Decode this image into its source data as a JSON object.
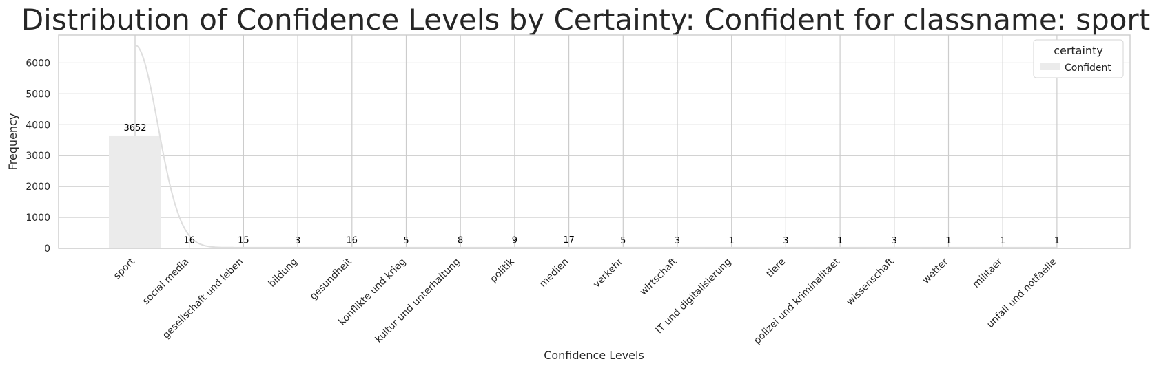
{
  "chart_data": {
    "type": "bar",
    "title": "Distribution of Confidence Levels by Certainty: Confident for classname: sport",
    "xlabel": "Confidence Levels",
    "ylabel": "Frequency",
    "ylim": [
      0,
      6900
    ],
    "yticks": [
      0,
      1000,
      2000,
      3000,
      4000,
      5000,
      6000
    ],
    "grid": true,
    "legend": {
      "title": "certainty",
      "placement": "top-right",
      "entries": [
        "Confident"
      ]
    },
    "categories": [
      "sport",
      "social media",
      "gesellschaft und leben",
      "bildung",
      "gesundheit",
      "konflikte und krieg",
      "kultur und unterhaltung",
      "politik",
      "medien",
      "verkehr",
      "wirtschaft",
      "IT und digitalisierung",
      "tiere",
      "polizei und kriminalitaet",
      "wissenschaft",
      "wetter",
      "militaer",
      "unfall und notfaelle"
    ],
    "series": [
      {
        "name": "Confident",
        "values": [
          3652,
          16,
          15,
          3,
          16,
          5,
          8,
          9,
          17,
          5,
          3,
          1,
          3,
          1,
          3,
          1,
          1,
          1
        ],
        "color": "#ebebeb"
      }
    ],
    "kde_curve": {
      "color": "#dedede",
      "peak_value": 6550
    }
  }
}
